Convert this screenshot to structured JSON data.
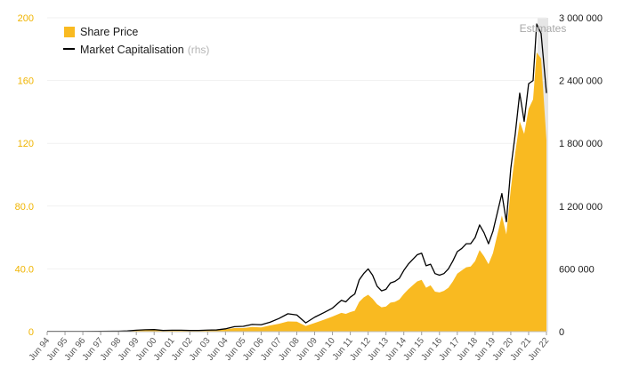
{
  "chart_data": {
    "type": "area",
    "title": "",
    "xlabel": "",
    "ylabel": "",
    "ylim": [
      0,
      200
    ],
    "y2lim": [
      0,
      3000000
    ],
    "yticks": [
      {
        "value": 0,
        "label": "0"
      },
      {
        "value": 40,
        "label": "40.0"
      },
      {
        "value": 80,
        "label": "80.0"
      },
      {
        "value": 120,
        "label": "120"
      },
      {
        "value": 160,
        "label": "160"
      },
      {
        "value": 200,
        "label": "200"
      }
    ],
    "y2ticks": [
      {
        "value": 0,
        "label": "0"
      },
      {
        "value": 600000,
        "label": "600 000"
      },
      {
        "value": 1200000,
        "label": "1 200 000"
      },
      {
        "value": 1800000,
        "label": "1 800 000"
      },
      {
        "value": 2400000,
        "label": "2 400 000"
      },
      {
        "value": 3000000,
        "label": "3 000 000"
      }
    ],
    "xticks": [
      "Jun 94",
      "Jun 95",
      "Jun 96",
      "Jun 97",
      "Jun 98",
      "Jun 99",
      "Jun 00",
      "Jun 01",
      "Jun 02",
      "Jun 03",
      "Jun 04",
      "Jun 05",
      "Jun 06",
      "Jun 07",
      "Jun 08",
      "Jun 09",
      "Jun 10",
      "Jun 11",
      "Jun 12",
      "Jun 13",
      "Jun 14",
      "Jun 15",
      "Jun 16",
      "Jun 17",
      "Jun 18",
      "Jun 19",
      "Jun 20",
      "Jun 21",
      "Jun 22"
    ],
    "xlim": [
      1994.5,
      2022.5
    ],
    "estimates": {
      "label": "Estimates",
      "from": 2022.0,
      "to": 2022.5
    },
    "legend": {
      "position": "top-left"
    },
    "series": [
      {
        "name": "Share Price",
        "kind": "area",
        "axis": "left",
        "color": "#f9ba21",
        "points": [
          [
            1994.5,
            0.1
          ],
          [
            1995.5,
            0.1
          ],
          [
            1996.5,
            0.1
          ],
          [
            1997.5,
            0.2
          ],
          [
            1998.5,
            0.3
          ],
          [
            1999.0,
            0.5
          ],
          [
            1999.5,
            0.9
          ],
          [
            2000.0,
            1.2
          ],
          [
            2000.5,
            1.3
          ],
          [
            2001.0,
            0.8
          ],
          [
            2001.5,
            0.9
          ],
          [
            2002.0,
            0.9
          ],
          [
            2002.5,
            0.8
          ],
          [
            2003.0,
            0.8
          ],
          [
            2003.5,
            1.0
          ],
          [
            2004.0,
            1.1
          ],
          [
            2004.5,
            1.4
          ],
          [
            2005.0,
            2.3
          ],
          [
            2005.5,
            2.3
          ],
          [
            2006.0,
            3.0
          ],
          [
            2006.5,
            2.7
          ],
          [
            2007.0,
            4.0
          ],
          [
            2007.5,
            5.0
          ],
          [
            2008.0,
            6.5
          ],
          [
            2008.5,
            6.4
          ],
          [
            2009.0,
            3.6
          ],
          [
            2009.5,
            5.5
          ],
          [
            2010.0,
            7.5
          ],
          [
            2010.5,
            9.6
          ],
          [
            2011.0,
            12.0
          ],
          [
            2011.25,
            11.3
          ],
          [
            2011.5,
            12.5
          ],
          [
            2011.75,
            13.3
          ],
          [
            2012.0,
            19.0
          ],
          [
            2012.25,
            21.8
          ],
          [
            2012.5,
            23.5
          ],
          [
            2012.75,
            21.0
          ],
          [
            2013.0,
            17.5
          ],
          [
            2013.25,
            15.5
          ],
          [
            2013.5,
            16.0
          ],
          [
            2013.75,
            18.5
          ],
          [
            2014.0,
            19.0
          ],
          [
            2014.25,
            20.5
          ],
          [
            2014.5,
            24.0
          ],
          [
            2014.75,
            27.0
          ],
          [
            2015.0,
            29.5
          ],
          [
            2015.25,
            32.0
          ],
          [
            2015.5,
            33.0
          ],
          [
            2015.75,
            28.0
          ],
          [
            2016.0,
            29.5
          ],
          [
            2016.25,
            25.5
          ],
          [
            2016.5,
            25.0
          ],
          [
            2016.75,
            26.0
          ],
          [
            2017.0,
            28.0
          ],
          [
            2017.25,
            32.0
          ],
          [
            2017.5,
            37.0
          ],
          [
            2017.75,
            39.0
          ],
          [
            2018.0,
            41.0
          ],
          [
            2018.25,
            41.5
          ],
          [
            2018.5,
            45.0
          ],
          [
            2018.75,
            52.0
          ],
          [
            2019.0,
            48.0
          ],
          [
            2019.25,
            43.0
          ],
          [
            2019.5,
            50.0
          ],
          [
            2019.75,
            62.0
          ],
          [
            2020.0,
            74.0
          ],
          [
            2020.25,
            62.0
          ],
          [
            2020.5,
            91.0
          ],
          [
            2020.75,
            114.0
          ],
          [
            2021.0,
            134.0
          ],
          [
            2021.25,
            126.0
          ],
          [
            2021.5,
            142.0
          ],
          [
            2021.75,
            148.0
          ],
          [
            2021.95,
            178.0
          ],
          [
            2022.2,
            174.0
          ],
          [
            2022.5,
            122.0
          ]
        ]
      },
      {
        "name": "Market Capitalisation",
        "name_suffix": "(rhs)",
        "kind": "line",
        "axis": "right",
        "color": "#000000",
        "points": [
          [
            1994.5,
            1500
          ],
          [
            1995.5,
            1500
          ],
          [
            1996.5,
            1500
          ],
          [
            1997.5,
            3000
          ],
          [
            1998.5,
            4500
          ],
          [
            1999.0,
            7500
          ],
          [
            1999.5,
            13500
          ],
          [
            2000.0,
            18000
          ],
          [
            2000.5,
            19500
          ],
          [
            2001.0,
            12000
          ],
          [
            2001.5,
            13500
          ],
          [
            2002.0,
            13500
          ],
          [
            2002.5,
            12000
          ],
          [
            2003.0,
            12000
          ],
          [
            2003.5,
            15000
          ],
          [
            2004.0,
            16500
          ],
          [
            2004.5,
            27000
          ],
          [
            2005.0,
            48000
          ],
          [
            2005.5,
            51000
          ],
          [
            2006.0,
            69000
          ],
          [
            2006.5,
            66000
          ],
          [
            2007.0,
            90000
          ],
          [
            2007.5,
            126000
          ],
          [
            2008.0,
            171000
          ],
          [
            2008.5,
            159000
          ],
          [
            2009.0,
            84000
          ],
          [
            2009.5,
            138000
          ],
          [
            2010.0,
            180000
          ],
          [
            2010.5,
            225000
          ],
          [
            2011.0,
            300000
          ],
          [
            2011.25,
            285000
          ],
          [
            2011.5,
            330000
          ],
          [
            2011.75,
            360000
          ],
          [
            2012.0,
            495000
          ],
          [
            2012.25,
            555000
          ],
          [
            2012.5,
            600000
          ],
          [
            2012.75,
            540000
          ],
          [
            2013.0,
            435000
          ],
          [
            2013.25,
            390000
          ],
          [
            2013.5,
            405000
          ],
          [
            2013.75,
            465000
          ],
          [
            2014.0,
            480000
          ],
          [
            2014.25,
            510000
          ],
          [
            2014.5,
            585000
          ],
          [
            2014.75,
            645000
          ],
          [
            2015.0,
            690000
          ],
          [
            2015.25,
            735000
          ],
          [
            2015.5,
            750000
          ],
          [
            2015.75,
            630000
          ],
          [
            2016.0,
            645000
          ],
          [
            2016.25,
            555000
          ],
          [
            2016.5,
            540000
          ],
          [
            2016.75,
            555000
          ],
          [
            2017.0,
            600000
          ],
          [
            2017.25,
            675000
          ],
          [
            2017.5,
            765000
          ],
          [
            2017.75,
            795000
          ],
          [
            2018.0,
            840000
          ],
          [
            2018.25,
            840000
          ],
          [
            2018.5,
            900000
          ],
          [
            2018.75,
            1020000
          ],
          [
            2019.0,
            945000
          ],
          [
            2019.25,
            840000
          ],
          [
            2019.5,
            960000
          ],
          [
            2019.75,
            1140000
          ],
          [
            2020.0,
            1320000
          ],
          [
            2020.25,
            1050000
          ],
          [
            2020.5,
            1560000
          ],
          [
            2020.75,
            1890000
          ],
          [
            2021.0,
            2280000
          ],
          [
            2021.25,
            2010000
          ],
          [
            2021.5,
            2370000
          ],
          [
            2021.75,
            2400000
          ],
          [
            2021.95,
            2940000
          ],
          [
            2022.2,
            2850000
          ],
          [
            2022.5,
            2280000
          ]
        ]
      }
    ]
  },
  "colors": {
    "share_price": "#f9ba21",
    "left_axis_labels": "#f0b400",
    "market_cap_line": "#000000",
    "estimates_band": "#e6e6e6"
  }
}
